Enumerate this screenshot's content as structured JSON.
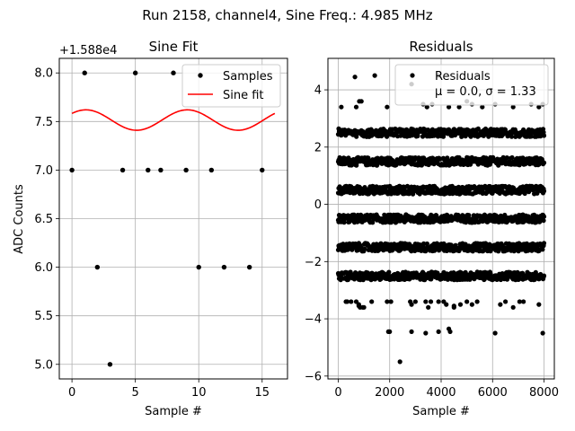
{
  "suptitle": "Run 2158, channel4, Sine Freq.: 4.985 MHz",
  "chart_data": [
    {
      "type": "scatter",
      "title": "Sine Fit",
      "xlabel": "Sample #",
      "ylabel": "ADC Counts",
      "offset_text": "+1.588e4",
      "xlim": [
        -1,
        17
      ],
      "ylim": [
        4.85,
        8.15
      ],
      "xticks": [
        0,
        5,
        10,
        15
      ],
      "yticks": [
        5.0,
        5.5,
        6.0,
        6.5,
        7.0,
        7.5,
        8.0
      ],
      "xtick_labels": [
        "0",
        "5",
        "10",
        "15"
      ],
      "ytick_labels": [
        "5.0",
        "5.5",
        "6.0",
        "6.5",
        "7.0",
        "7.5",
        "8.0"
      ],
      "grid": true,
      "legend": {
        "placement": "top-right",
        "entries": [
          "Samples",
          "Sine fit"
        ]
      },
      "series": [
        {
          "name": "Samples",
          "kind": "scatter",
          "color": "#000000",
          "x": [
            0,
            1,
            2,
            3,
            4,
            5,
            6,
            7,
            8,
            9,
            10,
            11,
            12,
            14,
            15
          ],
          "y": [
            7,
            8,
            6,
            5,
            7,
            8,
            7,
            7,
            8,
            7,
            6,
            7,
            6,
            6,
            7
          ]
        },
        {
          "name": "Sine fit",
          "kind": "line",
          "color": "#ff0000",
          "x_range": [
            0,
            16
          ],
          "mean": 7.515,
          "amplitude": 0.105,
          "period": 8.0,
          "peak_x": 1.1
        }
      ]
    },
    {
      "type": "scatter",
      "title": "Residuals",
      "xlabel": "Sample #",
      "xlim": [
        -400,
        8400
      ],
      "ylim": [
        -6.1,
        5.1
      ],
      "xticks": [
        0,
        2000,
        4000,
        6000,
        8000
      ],
      "yticks": [
        -6,
        -4,
        -2,
        0,
        2,
        4
      ],
      "xtick_labels": [
        "0",
        "2000",
        "4000",
        "6000",
        "8000"
      ],
      "ytick_labels": [
        "−6",
        "−4",
        "−2",
        "0",
        "2",
        "4"
      ],
      "grid": true,
      "legend": {
        "placement": "top-right",
        "entries": [
          "Residuals",
          "μ = 0.0, σ = 1.33"
        ]
      },
      "bands": [
        {
          "y": 2.5,
          "density": 0.95
        },
        {
          "y": 1.5,
          "density": 1.0
        },
        {
          "y": 0.5,
          "density": 1.0
        },
        {
          "y": -0.5,
          "density": 1.0
        },
        {
          "y": -1.5,
          "density": 1.0
        },
        {
          "y": -2.5,
          "density": 0.95
        }
      ],
      "sparse_points": {
        "x": [
          120,
          650,
          700,
          820,
          900,
          1420,
          1900,
          2850,
          3300,
          3450,
          3650,
          3900,
          4300,
          4700,
          5000,
          5200,
          5600,
          6100,
          6800,
          7500,
          7800,
          7950,
          300,
          350,
          500,
          700,
          800,
          850,
          950,
          1300,
          1900,
          2050,
          2800,
          2850,
          3000,
          3400,
          3500,
          3600,
          3900,
          4100,
          4200,
          4500,
          4750,
          5000,
          5200,
          5400,
          6300,
          6500,
          6800,
          7050,
          7200,
          7800,
          1950,
          2000,
          2400,
          2850,
          3400,
          3900,
          4300,
          4350,
          6100,
          7950,
          800,
          1000,
          4500
        ],
        "y": [
          3.4,
          4.45,
          3.4,
          3.6,
          3.6,
          4.5,
          3.4,
          4.2,
          3.5,
          3.4,
          3.5,
          4.5,
          3.4,
          3.4,
          3.6,
          3.5,
          3.4,
          3.5,
          3.4,
          3.5,
          3.4,
          3.5,
          -3.4,
          -3.4,
          -3.4,
          -3.4,
          -3.5,
          -3.6,
          -3.6,
          -3.4,
          -3.4,
          -3.4,
          -3.4,
          -3.5,
          -3.4,
          -3.4,
          -3.6,
          -3.4,
          -3.4,
          -3.4,
          -3.5,
          -3.6,
          -3.5,
          -3.4,
          -3.5,
          -3.4,
          -3.5,
          -3.4,
          -3.6,
          -3.4,
          -3.4,
          -3.5,
          -4.45,
          -4.45,
          -5.5,
          -4.45,
          -4.5,
          -4.45,
          -4.35,
          -4.45,
          -4.5,
          -4.5,
          -3.55,
          -3.6,
          -3.55
        ]
      }
    }
  ]
}
